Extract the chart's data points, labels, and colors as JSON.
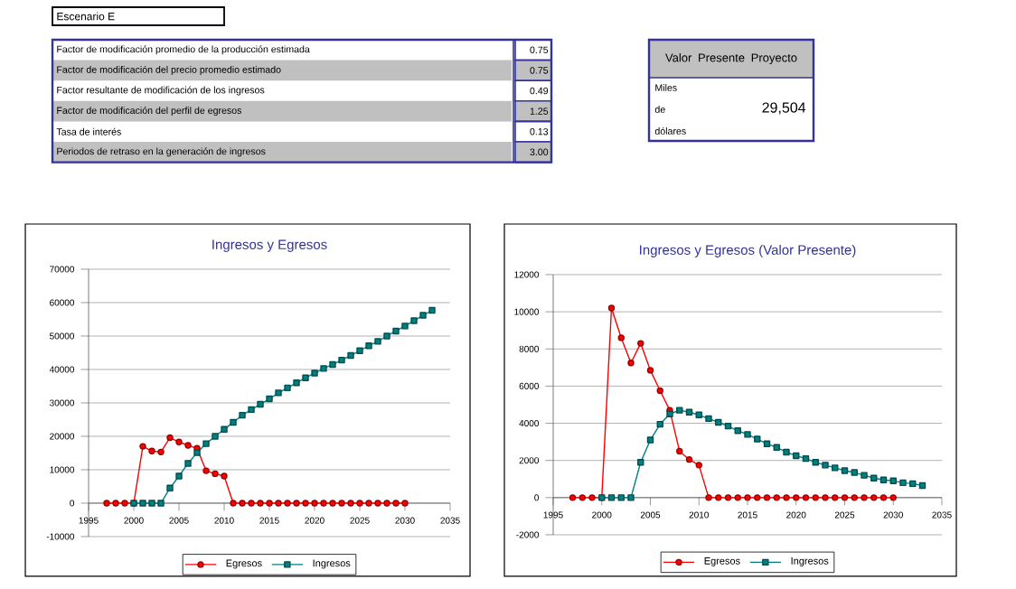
{
  "chart_data": [
    {
      "type": "other",
      "title": "Escenario E",
      "annotations": [
        "Factor de modificación promedio de la producción estimada",
        "0.75",
        "Factor de modificación del precio promedio estimado",
        "0.75",
        "Factor resultante de modificación de los ingresos",
        "0.49",
        "Factor de modificación del perfil de egresos",
        "1.25",
        "Tasa de interés",
        "0.13",
        "Periodos de retraso en la generación de ingresos",
        "3.00"
      ]
    },
    {
      "type": "other",
      "title": "Valor Presente Proyecto",
      "annotations": [
        "Miles de dólares",
        "29,504"
      ]
    },
    {
      "type": "line",
      "title": "Ingresos y Egresos",
      "xlim": [
        1995,
        2035
      ],
      "xticks": [
        1995,
        2000,
        2005,
        2010,
        2015,
        2020,
        2025,
        2030,
        2035
      ],
      "ylim": [
        -10000,
        70000
      ],
      "yticks": [
        -10000,
        0,
        10000,
        20000,
        30000,
        40000,
        50000,
        60000,
        70000
      ],
      "grid": "y",
      "legend": "bottom",
      "series": [
        {
          "name": "Egresos",
          "color": "#ff0000",
          "marker": "circle",
          "x": [
            1997,
            1998,
            1999,
            2000,
            2001,
            2002,
            2003,
            2004,
            2005,
            2006,
            2007,
            2008,
            2009,
            2010,
            2011,
            2012,
            2013,
            2014,
            2015,
            2016,
            2017,
            2018,
            2019,
            2020,
            2021,
            2022,
            2023,
            2024,
            2025,
            2026,
            2027,
            2028,
            2029,
            2030
          ],
          "values": [
            0,
            0,
            0,
            0,
            17000,
            15600,
            15300,
            19600,
            18300,
            17300,
            16400,
            9700,
            8800,
            8100,
            0,
            0,
            0,
            0,
            0,
            0,
            0,
            0,
            0,
            0,
            0,
            0,
            0,
            0,
            0,
            0,
            0,
            0,
            0,
            0
          ]
        },
        {
          "name": "Ingresos",
          "color": "#008080",
          "marker": "square",
          "x": [
            2000,
            2001,
            2002,
            2003,
            2004,
            2005,
            2006,
            2007,
            2008,
            2009,
            2010,
            2011,
            2012,
            2013,
            2014,
            2015,
            2016,
            2017,
            2018,
            2019,
            2020,
            2021,
            2022,
            2023,
            2024,
            2025,
            2026,
            2027,
            2028,
            2029,
            2030,
            2031,
            2032,
            2033
          ],
          "values": [
            0,
            0,
            0,
            0,
            4500,
            8100,
            11900,
            15100,
            17800,
            20000,
            22100,
            24200,
            26300,
            28000,
            29600,
            31200,
            33000,
            34500,
            36000,
            37500,
            38900,
            40300,
            41500,
            42800,
            44200,
            45600,
            47100,
            48400,
            50000,
            51500,
            53000,
            54600,
            56200,
            57700
          ]
        }
      ]
    },
    {
      "type": "line",
      "title": "Ingresos y Egresos (Valor Presente)",
      "xlim": [
        1995,
        2035
      ],
      "xticks": [
        1995,
        2000,
        2005,
        2010,
        2015,
        2020,
        2025,
        2030,
        2035
      ],
      "ylim": [
        -2000,
        12000
      ],
      "yticks": [
        -2000,
        0,
        2000,
        4000,
        6000,
        8000,
        10000,
        12000
      ],
      "grid": "y",
      "legend": "bottom",
      "series": [
        {
          "name": "Egresos",
          "color": "#ff0000",
          "marker": "circle",
          "x": [
            1997,
            1998,
            1999,
            2000,
            2001,
            2002,
            2003,
            2004,
            2005,
            2006,
            2007,
            2008,
            2009,
            2010,
            2011,
            2012,
            2013,
            2014,
            2015,
            2016,
            2017,
            2018,
            2019,
            2020,
            2021,
            2022,
            2023,
            2024,
            2025,
            2026,
            2027,
            2028,
            2029,
            2030
          ],
          "values": [
            0,
            0,
            0,
            0,
            10200,
            8600,
            7250,
            8300,
            6850,
            5750,
            4700,
            2500,
            2050,
            1750,
            0,
            0,
            0,
            0,
            0,
            0,
            0,
            0,
            0,
            0,
            0,
            0,
            0,
            0,
            0,
            0,
            0,
            0,
            0,
            0
          ]
        },
        {
          "name": "Ingresos",
          "color": "#008080",
          "marker": "square",
          "x": [
            2000,
            2001,
            2002,
            2003,
            2004,
            2005,
            2006,
            2007,
            2008,
            2009,
            2010,
            2011,
            2012,
            2013,
            2014,
            2015,
            2016,
            2017,
            2018,
            2019,
            2020,
            2021,
            2022,
            2023,
            2024,
            2025,
            2026,
            2027,
            2028,
            2029,
            2030,
            2031,
            2032,
            2033
          ],
          "values": [
            0,
            0,
            0,
            0,
            1900,
            3100,
            3950,
            4500,
            4700,
            4600,
            4450,
            4250,
            4050,
            3850,
            3600,
            3400,
            3150,
            2900,
            2700,
            2450,
            2250,
            2100,
            1900,
            1750,
            1600,
            1450,
            1350,
            1200,
            1050,
            950,
            900,
            800,
            750,
            650
          ]
        }
      ]
    }
  ]
}
